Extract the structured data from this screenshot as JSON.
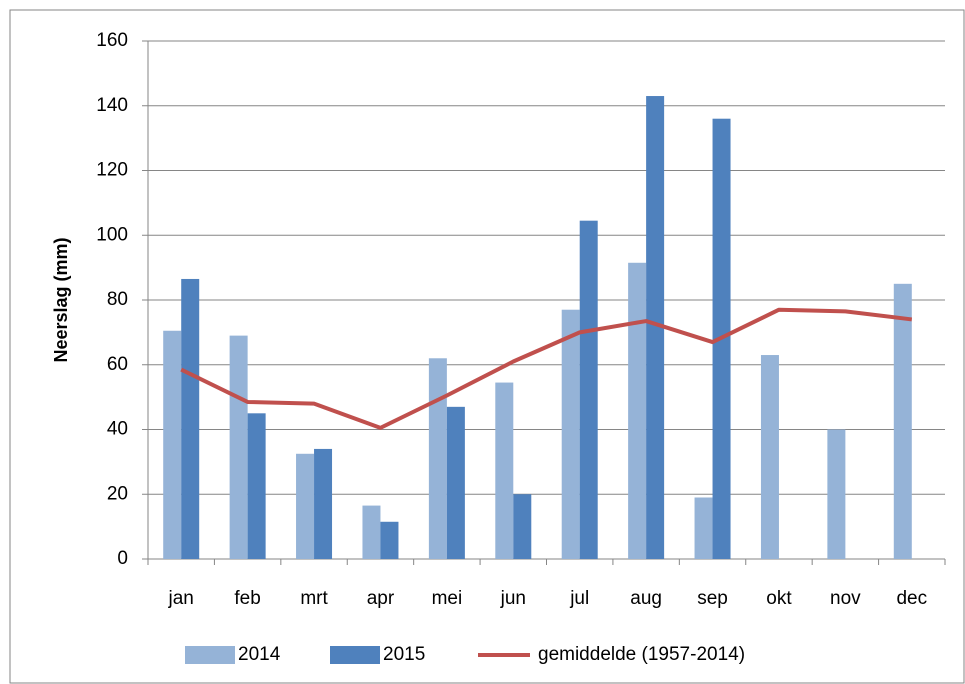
{
  "chart_data": {
    "type": "bar",
    "y_label": "Neerslag (mm)",
    "categories": [
      "jan",
      "feb",
      "mrt",
      "apr",
      "mei",
      "jun",
      "jul",
      "aug",
      "sep",
      "okt",
      "nov",
      "dec"
    ],
    "series": [
      {
        "name": "2014",
        "type": "bar",
        "color": "#95b3d7",
        "values": [
          70.5,
          69,
          32.5,
          16.5,
          62,
          54.5,
          77,
          91.5,
          19,
          63,
          40,
          85
        ]
      },
      {
        "name": "2015",
        "type": "bar",
        "color": "#4f81bd",
        "values": [
          86.5,
          45,
          34,
          11.5,
          47,
          20,
          104.5,
          143,
          136,
          null,
          null,
          null
        ]
      },
      {
        "name": "gemiddelde (1957-2014)",
        "type": "line",
        "color": "#c0504d",
        "values": [
          58.5,
          48.5,
          48,
          40.5,
          50.5,
          61,
          70,
          73.5,
          67,
          77,
          76.5,
          74
        ]
      }
    ],
    "ylim": [
      0,
      160
    ],
    "yticks": [
      0,
      20,
      40,
      60,
      80,
      100,
      120,
      140,
      160
    ],
    "grid": true,
    "legend": "bottom"
  }
}
